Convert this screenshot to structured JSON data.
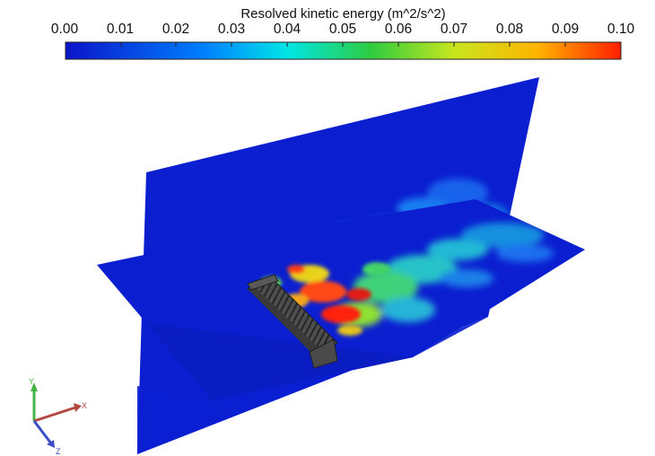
{
  "colorbar": {
    "title": "Resolved kinetic energy (m^2/s^2)",
    "ticks": [
      "0.00",
      "0.01",
      "0.02",
      "0.03",
      "0.04",
      "0.05",
      "0.06",
      "0.07",
      "0.08",
      "0.09",
      "0.10"
    ],
    "colormap": [
      "#0a14c8",
      "#0080ff",
      "#00e5e5",
      "#2ecc40",
      "#c8e61e",
      "#ffb400",
      "#ff1e00"
    ]
  },
  "scene": {
    "background": "#ffffff",
    "plane_color": "#0b1fd0"
  },
  "axes_triad": {
    "x_label": "X",
    "y_label": "Y",
    "z_label": "Z",
    "x_color": "#b24a42",
    "y_color": "#45b545",
    "z_color": "#3a4fc7"
  }
}
